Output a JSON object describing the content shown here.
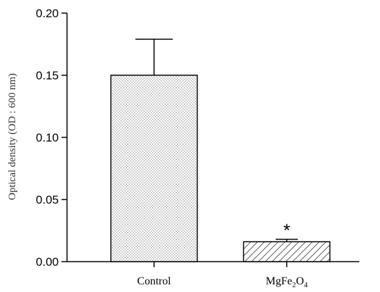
{
  "chart_data": {
    "type": "bar",
    "title": "",
    "xlabel": "",
    "ylabel": "Optical density (OD : 600 nm)",
    "ylim": [
      0,
      0.2
    ],
    "yticks": [
      "0.00",
      "0.05",
      "0.10",
      "0.15",
      "0.20"
    ],
    "categories": [
      "Control",
      "MgFe2O4"
    ],
    "category_display": [
      {
        "base": "Control",
        "parts": []
      },
      {
        "base": "MgFe",
        "parts": [
          {
            "sub": "2",
            "text": "O"
          },
          {
            "sub": "4",
            "text": ""
          }
        ]
      }
    ],
    "values": [
      0.15,
      0.016
    ],
    "error": [
      0.029,
      0.002
    ],
    "patterns": [
      "dots",
      "hatch"
    ],
    "significance": [
      "",
      "*"
    ],
    "grid": false,
    "legend": "none"
  }
}
